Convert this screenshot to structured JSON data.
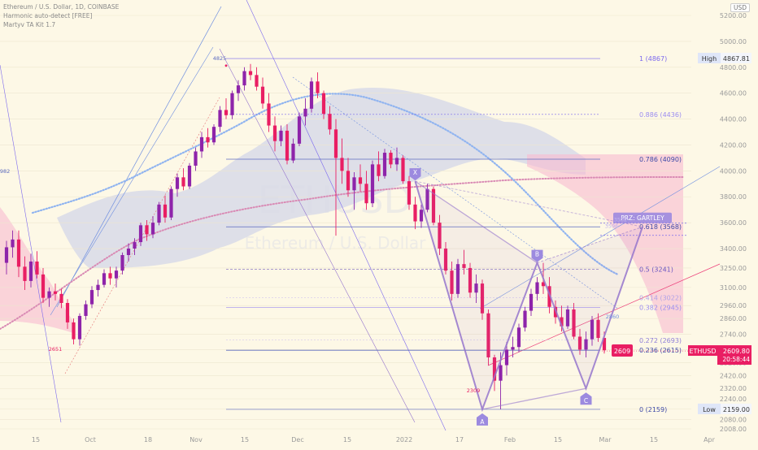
{
  "header": {
    "title": "Ethereum / U.S. Dollar, 1D, COINBASE",
    "indicator_1": "Harmonic auto-detect [FREE]",
    "indicator_2": "Martyv TA Kit 1.7",
    "currency_button": "USD"
  },
  "watermark": {
    "symbol": "ETHUSD",
    "name": "Ethereum / U.S. Dollar"
  },
  "colors": {
    "bull": "#8e24aa",
    "bear": "#e91e63",
    "fib": "#7b68ee",
    "pattern": "#9575cd",
    "cloud_blue": "#c5cae9",
    "cloud_red": "#f8bbd0",
    "last_price": "#e91e63"
  },
  "chart_data": {
    "type": "candlestick",
    "symbol": "ETHUSD",
    "timeframe": "1D",
    "exchange": "COINBASE",
    "ylim": [
      2008,
      5200
    ],
    "y_ticks": [
      5200,
      5000,
      4800,
      4600,
      4400,
      4200,
      4000,
      3800,
      3600,
      3400,
      3250,
      3100,
      2960,
      2860,
      2740,
      2620,
      2520,
      2420,
      2320,
      2240,
      2160,
      2080,
      2008
    ],
    "x_tick_labels": [
      "15",
      "Oct",
      "18",
      "Nov",
      "15",
      "Dec",
      "15",
      "2022",
      "17",
      "Feb",
      "15",
      "Mar",
      "15",
      "Apr"
    ],
    "candles": [
      [
        3290,
        3460,
        3200,
        3410
      ],
      [
        3410,
        3540,
        3330,
        3470
      ],
      [
        3470,
        3540,
        3180,
        3260
      ],
      [
        3260,
        3340,
        3080,
        3150
      ],
      [
        3150,
        3360,
        3100,
        3300
      ],
      [
        3300,
        3380,
        3170,
        3200
      ],
      [
        3200,
        3250,
        2980,
        3020
      ],
      [
        3020,
        3100,
        2950,
        3070
      ],
      [
        3070,
        3130,
        3000,
        3050
      ],
      [
        3050,
        3090,
        2940,
        2980
      ],
      [
        2980,
        3010,
        2780,
        2830
      ],
      [
        2830,
        2860,
        2660,
        2700
      ],
      [
        2700,
        2900,
        2651,
        2880
      ],
      [
        2880,
        3000,
        2850,
        2970
      ],
      [
        2970,
        3110,
        2940,
        3080
      ],
      [
        3080,
        3160,
        3030,
        3120
      ],
      [
        3120,
        3240,
        3100,
        3210
      ],
      [
        3210,
        3260,
        3120,
        3170
      ],
      [
        3170,
        3260,
        3100,
        3230
      ],
      [
        3230,
        3370,
        3200,
        3350
      ],
      [
        3350,
        3440,
        3300,
        3400
      ],
      [
        3400,
        3480,
        3350,
        3450
      ],
      [
        3450,
        3600,
        3420,
        3580
      ],
      [
        3580,
        3620,
        3460,
        3510
      ],
      [
        3510,
        3650,
        3480,
        3600
      ],
      [
        3600,
        3760,
        3580,
        3740
      ],
      [
        3740,
        3810,
        3600,
        3640
      ],
      [
        3640,
        3880,
        3620,
        3860
      ],
      [
        3860,
        3980,
        3800,
        3950
      ],
      [
        3950,
        4020,
        3850,
        3880
      ],
      [
        3880,
        4060,
        3860,
        4040
      ],
      [
        4040,
        4180,
        4000,
        4150
      ],
      [
        4150,
        4300,
        4100,
        4260
      ],
      [
        4260,
        4330,
        4180,
        4220
      ],
      [
        4220,
        4360,
        4200,
        4340
      ],
      [
        4340,
        4500,
        4300,
        4470
      ],
      [
        4470,
        4560,
        4400,
        4430
      ],
      [
        4430,
        4620,
        4400,
        4600
      ],
      [
        4600,
        4700,
        4540,
        4660
      ],
      [
        4660,
        4800,
        4620,
        4770
      ],
      [
        4770,
        4825,
        4700,
        4740
      ],
      [
        4740,
        4800,
        4620,
        4650
      ],
      [
        4650,
        4720,
        4480,
        4520
      ],
      [
        4520,
        4600,
        4300,
        4350
      ],
      [
        4350,
        4420,
        4150,
        4230
      ],
      [
        4230,
        4350,
        4190,
        4310
      ],
      [
        4310,
        4360,
        4050,
        4080
      ],
      [
        4080,
        4250,
        4060,
        4210
      ],
      [
        4210,
        4450,
        4190,
        4420
      ],
      [
        4420,
        4560,
        4350,
        4480
      ],
      [
        4480,
        4720,
        4450,
        4690
      ],
      [
        4690,
        4760,
        4560,
        4600
      ],
      [
        4600,
        4620,
        4400,
        4440
      ],
      [
        4440,
        4500,
        4280,
        4320
      ],
      [
        4320,
        4400,
        3500,
        4100
      ],
      [
        4100,
        4250,
        3900,
        4000
      ],
      [
        4000,
        4100,
        3800,
        3850
      ],
      [
        3850,
        3990,
        3700,
        3950
      ],
      [
        3950,
        4050,
        3840,
        3900
      ],
      [
        3900,
        4000,
        3700,
        3750
      ],
      [
        3750,
        4080,
        3720,
        4050
      ],
      [
        4050,
        4150,
        3920,
        3960
      ],
      [
        3960,
        4170,
        3940,
        4140
      ],
      [
        4140,
        4160,
        4020,
        4050
      ],
      [
        4050,
        4180,
        4000,
        4100
      ],
      [
        4100,
        4120,
        3900,
        3920
      ],
      [
        3920,
        3960,
        3700,
        3740
      ],
      [
        3740,
        3800,
        3550,
        3610
      ],
      [
        3610,
        3740,
        3560,
        3700
      ],
      [
        3700,
        3900,
        3680,
        3860
      ],
      [
        3860,
        3880,
        3580,
        3600
      ],
      [
        3600,
        3660,
        3350,
        3400
      ],
      [
        3400,
        3450,
        3200,
        3230
      ],
      [
        3230,
        3300,
        3000,
        3050
      ],
      [
        3050,
        3320,
        3020,
        3280
      ],
      [
        3280,
        3390,
        3200,
        3250
      ],
      [
        3250,
        3290,
        3020,
        3060
      ],
      [
        3060,
        3200,
        2980,
        3130
      ],
      [
        3130,
        3160,
        2850,
        2900
      ],
      [
        2900,
        2930,
        2500,
        2560
      ],
      [
        2560,
        2580,
        2300,
        2380
      ],
      [
        2380,
        2600,
        2159,
        2500
      ],
      [
        2500,
        2680,
        2420,
        2620
      ],
      [
        2620,
        2720,
        2560,
        2640
      ],
      [
        2640,
        2820,
        2600,
        2790
      ],
      [
        2790,
        2950,
        2760,
        2920
      ],
      [
        2920,
        3090,
        2880,
        3050
      ],
      [
        3050,
        3180,
        3000,
        3140
      ],
      [
        3140,
        3290,
        3050,
        3110
      ],
      [
        3110,
        3180,
        2900,
        2950
      ],
      [
        2950,
        3000,
        2820,
        2870
      ],
      [
        2870,
        2960,
        2760,
        2800
      ],
      [
        2800,
        2960,
        2780,
        2930
      ],
      [
        2930,
        2980,
        2700,
        2720
      ],
      [
        2720,
        2780,
        2580,
        2620
      ],
      [
        2620,
        2760,
        2560,
        2700
      ],
      [
        2700,
        2880,
        2650,
        2850
      ],
      [
        2850,
        2900,
        2680,
        2710
      ],
      [
        2710,
        2760,
        2590,
        2615
      ]
    ],
    "fib_levels": [
      {
        "label": "1 (4867)",
        "value": 4867
      },
      {
        "label": "0.886 (4436)",
        "value": 4436
      },
      {
        "label": "0.786 (4090)",
        "value": 4090
      },
      {
        "label": "0.618 (3568)",
        "value": 3568
      },
      {
        "label": "0.5 (3241)",
        "value": 3241
      },
      {
        "label": "0.414 (3022)",
        "value": 3022
      },
      {
        "label": "0.382 (2945)",
        "value": 2945
      },
      {
        "label": "0.272 (2693)",
        "value": 2693
      },
      {
        "label": "0.236 (2615)",
        "value": 2615
      },
      {
        "label": "0 (2159)",
        "value": 2159
      }
    ],
    "pattern": {
      "name": "PRZ: GARTLEY",
      "points": [
        {
          "label": "X",
          "value": 3920
        },
        {
          "label": "A",
          "value": 2159
        },
        {
          "label": "B",
          "value": 3290
        },
        {
          "label": "C",
          "value": 2320
        },
        {
          "label": "D",
          "value": 3568
        }
      ]
    },
    "price_annotations": [
      {
        "text": "4825",
        "value": 4825
      },
      {
        "text": "3982",
        "value": 3982
      },
      {
        "text": "2651",
        "value": 2651
      },
      {
        "text": "2309",
        "value": 2309
      },
      {
        "text": "2860",
        "value": 2860
      },
      {
        "text": "3596",
        "value": 3596
      },
      {
        "text": "3502",
        "value": 3502
      }
    ],
    "high": {
      "label": "High",
      "value": "4867.81"
    },
    "low": {
      "label": "Low",
      "value": "2159.00"
    },
    "last_price": {
      "symbol": "ETHUSD",
      "value": "2609.80",
      "countdown": "20:58:44",
      "marker": "2609"
    }
  }
}
